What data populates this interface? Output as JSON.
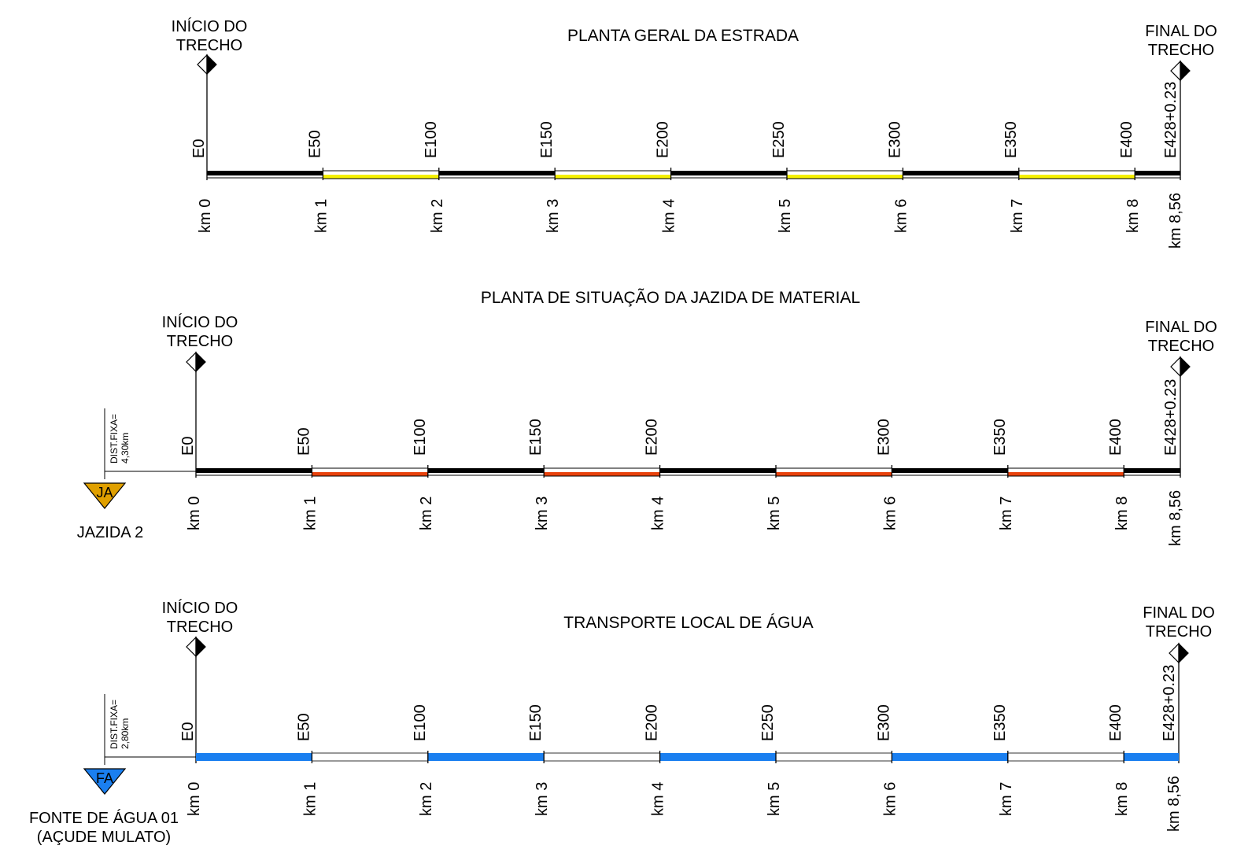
{
  "colors": {
    "line": "#000000",
    "yellow": "#f5f000",
    "red": "#e8420c",
    "blue": "#1a7ff0",
    "jazida_marker": "#e0a000",
    "fonte_marker": "#1a7ff0"
  },
  "start_label": [
    "INÍCIO DO",
    "TRECHO"
  ],
  "end_label": [
    "FINAL DO",
    "TRECHO"
  ],
  "end_station": "E428+0.23",
  "end_km": "km 8,56",
  "panels": [
    {
      "id": "planta-geral",
      "title": "PLANTA GERAL DA ESTRADA",
      "stations": [
        "E0",
        "E50",
        "E100",
        "E150",
        "E200",
        "E250",
        "E300",
        "E350",
        "E400"
      ],
      "kms": [
        "km 0",
        "km 1",
        "km 2",
        "km 3",
        "km 4",
        "km 5",
        "km 6",
        "km 7",
        "km 8"
      ],
      "band_style": "yellow-alternate"
    },
    {
      "id": "planta-jazida",
      "title": "PLANTA DE SITUAÇÃO DA JAZIDA DE MATERIAL",
      "stations": [
        "E0",
        "E50",
        "E100",
        "E150",
        "E200",
        "",
        "E300",
        "E350",
        "E400"
      ],
      "kms": [
        "km 0",
        "km 1",
        "km 2",
        "km 3",
        "km 4",
        "km 5",
        "km 6",
        "km 7",
        "km 8"
      ],
      "band_style": "red-alternate",
      "source": {
        "marker": "JA",
        "name": [
          "JAZIDA 2"
        ],
        "dist": [
          "DIST.FIXA=",
          "4,30km"
        ]
      }
    },
    {
      "id": "transporte-agua",
      "title": "TRANSPORTE LOCAL DE ÁGUA",
      "stations": [
        "E0",
        "E50",
        "E100",
        "E150",
        "E200",
        "E250",
        "E300",
        "E350",
        "E400"
      ],
      "kms": [
        "km 0",
        "km 1",
        "km 2",
        "km 3",
        "km 4",
        "km 5",
        "km 6",
        "km 7",
        "km 8"
      ],
      "band_style": "blue-alternate",
      "source": {
        "marker": "FA",
        "name": [
          "FONTE DE ÁGUA 01",
          "(AÇUDE MULATO)"
        ],
        "dist": [
          "DIST.FIXA=",
          "2,80km"
        ]
      }
    }
  ]
}
